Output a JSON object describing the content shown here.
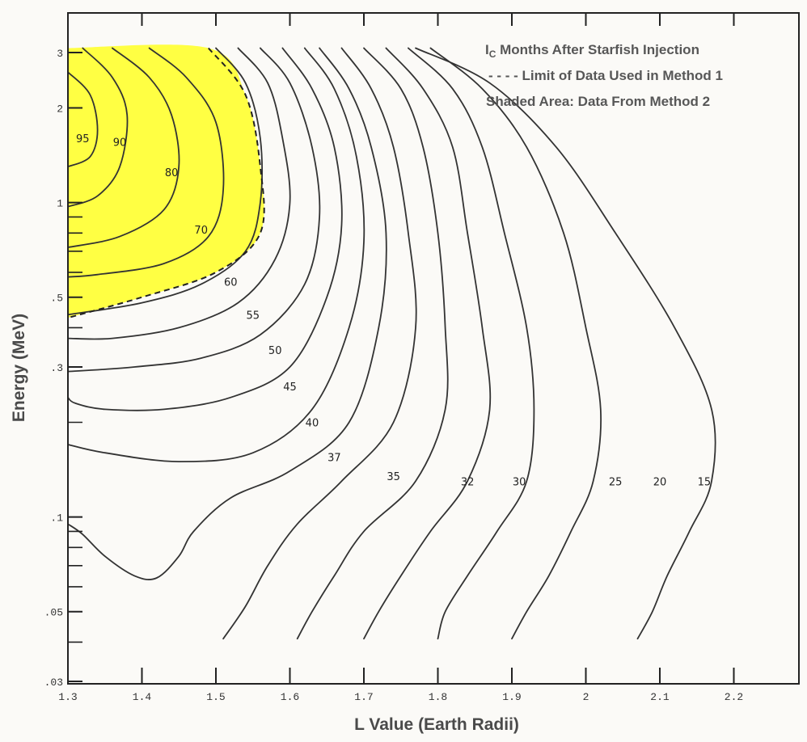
{
  "chart_data": {
    "type": "contour",
    "title": "",
    "xlabel": "L Value (Earth Radii)",
    "ylabel": "Energy (MeV)",
    "xlim": [
      1.3,
      2.3
    ],
    "ylim": [
      0.03,
      3.6
    ],
    "yscale": "log",
    "grid": false,
    "x_ticks": [
      {
        "value": 1.3,
        "label": "1.3"
      },
      {
        "value": 1.4,
        "label": "1.4"
      },
      {
        "value": 1.5,
        "label": "1.5"
      },
      {
        "value": 1.6,
        "label": "1.6"
      },
      {
        "value": 1.7,
        "label": "1.7"
      },
      {
        "value": 1.8,
        "label": "1.8"
      },
      {
        "value": 1.9,
        "label": "1.9"
      },
      {
        "value": 2.0,
        "label": "2"
      },
      {
        "value": 2.1,
        "label": "2.1"
      },
      {
        "value": 2.2,
        "label": "2.2"
      }
    ],
    "y_ticks": [
      {
        "value": 3,
        "label": "3"
      },
      {
        "value": 2,
        "label": "2"
      },
      {
        "value": 1,
        "label": "1"
      },
      {
        "value": 0.5,
        "label": ".5"
      },
      {
        "value": 0.3,
        "label": ".3"
      },
      {
        "value": 0.1,
        "label": ".1"
      },
      {
        "value": 0.05,
        "label": ".05"
      },
      {
        "value": 0.03,
        "label": ".03"
      }
    ],
    "legend": {
      "position": "top-right",
      "entries": [
        {
          "main": "I",
          "sub": "C",
          "rest": " Months After Starfish Injection"
        },
        {
          "main": "- - - - Limit of Data Used in Method 1"
        },
        {
          "main": "Shaded Area: Data From Method 2"
        }
      ]
    },
    "shade_color": "#ffff33",
    "line_color": "#333333",
    "shaded_region": [
      [
        1.3,
        3.1
      ],
      [
        1.49,
        3.1
      ],
      [
        1.54,
        2.2
      ],
      [
        1.56,
        1.3
      ],
      [
        1.56,
        0.8
      ],
      [
        1.5,
        0.6
      ],
      [
        1.4,
        0.5
      ],
      [
        1.3,
        0.43
      ]
    ],
    "method1_limit": [
      [
        1.49,
        3.1
      ],
      [
        1.54,
        2.2
      ],
      [
        1.56,
        1.3
      ],
      [
        1.56,
        0.8
      ],
      [
        1.5,
        0.6
      ],
      [
        1.4,
        0.5
      ],
      [
        1.3,
        0.43
      ]
    ],
    "contours": [
      {
        "label": "95",
        "label_at": [
          1.32,
          1.6
        ],
        "points": [
          [
            1.3,
            2.6
          ],
          [
            1.33,
            2.2
          ],
          [
            1.34,
            1.7
          ],
          [
            1.33,
            1.4
          ],
          [
            1.3,
            1.3
          ]
        ]
      },
      {
        "label": "90",
        "label_at": [
          1.37,
          1.56
        ],
        "points": [
          [
            1.32,
            3.1
          ],
          [
            1.36,
            2.5
          ],
          [
            1.38,
            1.9
          ],
          [
            1.37,
            1.3
          ],
          [
            1.34,
            1.05
          ],
          [
            1.3,
            0.97
          ]
        ]
      },
      {
        "label": "80",
        "label_at": [
          1.44,
          1.25
        ],
        "points": [
          [
            1.36,
            3.1
          ],
          [
            1.41,
            2.5
          ],
          [
            1.44,
            1.9
          ],
          [
            1.45,
            1.3
          ],
          [
            1.43,
            0.95
          ],
          [
            1.37,
            0.78
          ],
          [
            1.3,
            0.72
          ]
        ]
      },
      {
        "label": "70",
        "label_at": [
          1.48,
          0.82
        ],
        "points": [
          [
            1.41,
            3.1
          ],
          [
            1.46,
            2.5
          ],
          [
            1.5,
            1.8
          ],
          [
            1.51,
            1.1
          ],
          [
            1.49,
            0.78
          ],
          [
            1.43,
            0.64
          ],
          [
            1.34,
            0.59
          ],
          [
            1.3,
            0.58
          ]
        ]
      },
      {
        "label": "60",
        "label_at": [
          1.52,
          0.56
        ],
        "points": [
          [
            1.5,
            3.1
          ],
          [
            1.54,
            2.4
          ],
          [
            1.56,
            1.6
          ],
          [
            1.56,
            1.0
          ],
          [
            1.54,
            0.7
          ],
          [
            1.48,
            0.55
          ],
          [
            1.4,
            0.48
          ],
          [
            1.3,
            0.44
          ]
        ]
      },
      {
        "label": "55",
        "label_at": [
          1.55,
          0.44
        ],
        "points": [
          [
            1.53,
            3.1
          ],
          [
            1.57,
            2.4
          ],
          [
            1.59,
            1.6
          ],
          [
            1.6,
            1.0
          ],
          [
            1.58,
            0.66
          ],
          [
            1.53,
            0.48
          ],
          [
            1.45,
            0.4
          ],
          [
            1.36,
            0.37
          ],
          [
            1.3,
            0.37
          ]
        ]
      },
      {
        "label": "50",
        "label_at": [
          1.58,
          0.34
        ],
        "points": [
          [
            1.56,
            3.1
          ],
          [
            1.6,
            2.4
          ],
          [
            1.63,
            1.5
          ],
          [
            1.64,
            0.9
          ],
          [
            1.62,
            0.55
          ],
          [
            1.56,
            0.38
          ],
          [
            1.48,
            0.32
          ],
          [
            1.39,
            0.3
          ],
          [
            1.3,
            0.29
          ]
        ]
      },
      {
        "label": "45",
        "label_at": [
          1.6,
          0.26
        ],
        "points": [
          [
            1.59,
            3.1
          ],
          [
            1.63,
            2.3
          ],
          [
            1.66,
            1.5
          ],
          [
            1.67,
            0.85
          ],
          [
            1.65,
            0.5
          ],
          [
            1.6,
            0.3
          ],
          [
            1.52,
            0.24
          ],
          [
            1.43,
            0.22
          ],
          [
            1.35,
            0.22
          ],
          [
            1.31,
            0.23
          ],
          [
            1.3,
            0.24
          ]
        ]
      },
      {
        "label": "40",
        "label_at": [
          1.63,
          0.2
        ],
        "points": [
          [
            1.62,
            3.1
          ],
          [
            1.66,
            2.3
          ],
          [
            1.69,
            1.4
          ],
          [
            1.7,
            0.75
          ],
          [
            1.68,
            0.4
          ],
          [
            1.63,
            0.22
          ],
          [
            1.55,
            0.16
          ],
          [
            1.45,
            0.15
          ],
          [
            1.35,
            0.16
          ],
          [
            1.3,
            0.17
          ]
        ]
      },
      {
        "label": "37",
        "label_at": [
          1.66,
          0.155
        ],
        "points": [
          [
            1.64,
            3.1
          ],
          [
            1.68,
            2.3
          ],
          [
            1.71,
            1.5
          ],
          [
            1.73,
            0.8
          ],
          [
            1.72,
            0.4
          ],
          [
            1.68,
            0.2
          ],
          [
            1.6,
            0.14
          ],
          [
            1.52,
            0.115
          ],
          [
            1.47,
            0.09
          ],
          [
            1.45,
            0.075
          ],
          [
            1.42,
            0.064
          ],
          [
            1.39,
            0.065
          ],
          [
            1.35,
            0.075
          ],
          [
            1.32,
            0.088
          ],
          [
            1.3,
            0.095
          ]
        ]
      },
      {
        "label": "35",
        "label_at": [
          1.74,
          0.135
        ],
        "points": [
          [
            1.67,
            3.1
          ],
          [
            1.71,
            2.3
          ],
          [
            1.74,
            1.5
          ],
          [
            1.76,
            0.8
          ],
          [
            1.77,
            0.4
          ],
          [
            1.74,
            0.2
          ],
          [
            1.67,
            0.13
          ],
          [
            1.61,
            0.095
          ],
          [
            1.57,
            0.07
          ],
          [
            1.54,
            0.052
          ],
          [
            1.51,
            0.041
          ]
        ]
      },
      {
        "label": "32",
        "label_at": [
          1.84,
          0.13
        ],
        "points": [
          [
            1.7,
            3.1
          ],
          [
            1.75,
            2.3
          ],
          [
            1.78,
            1.5
          ],
          [
            1.8,
            0.8
          ],
          [
            1.81,
            0.4
          ],
          [
            1.81,
            0.22
          ],
          [
            1.77,
            0.13
          ],
          [
            1.7,
            0.09
          ],
          [
            1.66,
            0.065
          ],
          [
            1.63,
            0.05
          ],
          [
            1.61,
            0.041
          ]
        ]
      },
      {
        "label": "30",
        "label_at": [
          1.91,
          0.13
        ],
        "points": [
          [
            1.73,
            3.1
          ],
          [
            1.78,
            2.3
          ],
          [
            1.82,
            1.5
          ],
          [
            1.84,
            0.8
          ],
          [
            1.86,
            0.4
          ],
          [
            1.87,
            0.22
          ],
          [
            1.84,
            0.13
          ],
          [
            1.79,
            0.09
          ],
          [
            1.75,
            0.065
          ],
          [
            1.72,
            0.05
          ],
          [
            1.7,
            0.041
          ]
        ]
      },
      {
        "label": "25",
        "label_at": [
          2.04,
          0.13
        ],
        "points": [
          [
            1.76,
            3.1
          ],
          [
            1.82,
            2.3
          ],
          [
            1.86,
            1.5
          ],
          [
            1.89,
            0.8
          ],
          [
            1.92,
            0.4
          ],
          [
            1.93,
            0.22
          ],
          [
            1.92,
            0.13
          ],
          [
            1.88,
            0.09
          ],
          [
            1.84,
            0.065
          ],
          [
            1.81,
            0.05
          ],
          [
            1.8,
            0.041
          ]
        ]
      },
      {
        "label": "20",
        "label_at": [
          2.1,
          0.13
        ],
        "points": [
          [
            1.79,
            3.1
          ],
          [
            1.86,
            2.3
          ],
          [
            1.92,
            1.5
          ],
          [
            1.97,
            0.8
          ],
          [
            2.0,
            0.4
          ],
          [
            2.02,
            0.22
          ],
          [
            2.01,
            0.13
          ],
          [
            1.98,
            0.09
          ],
          [
            1.95,
            0.065
          ],
          [
            1.92,
            0.05
          ],
          [
            1.9,
            0.041
          ]
        ]
      },
      {
        "label": "15",
        "label_at": [
          2.16,
          0.13
        ],
        "points": [
          [
            1.77,
            3.1
          ],
          [
            1.87,
            2.4
          ],
          [
            1.96,
            1.5
          ],
          [
            2.04,
            0.8
          ],
          [
            2.12,
            0.4
          ],
          [
            2.17,
            0.22
          ],
          [
            2.17,
            0.13
          ],
          [
            2.14,
            0.09
          ],
          [
            2.11,
            0.065
          ],
          [
            2.09,
            0.05
          ],
          [
            2.07,
            0.041
          ]
        ]
      }
    ]
  }
}
